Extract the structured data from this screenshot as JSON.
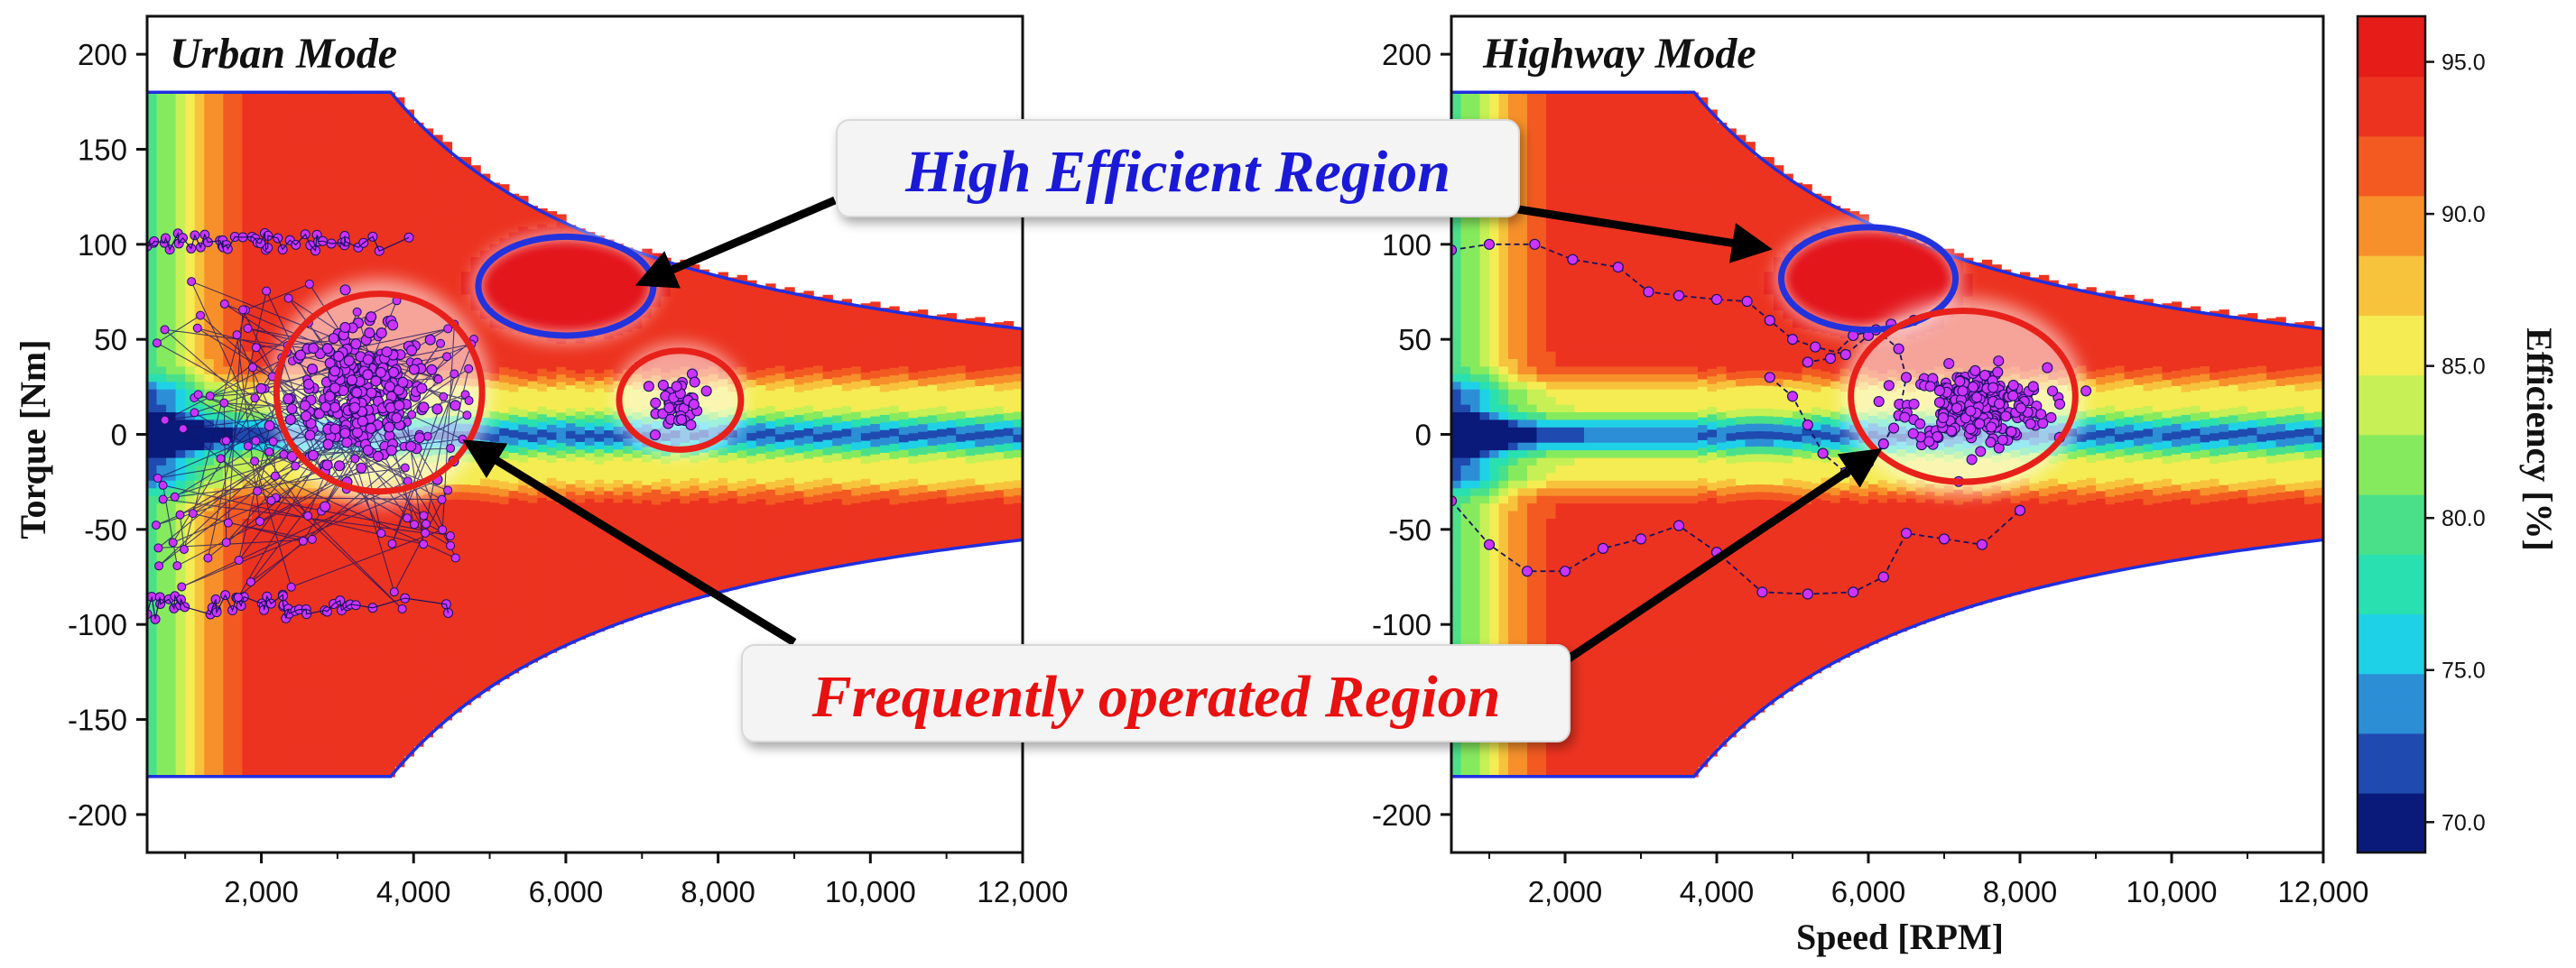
{
  "chart_data": [
    {
      "type": "heatmap",
      "title": "Urban Mode",
      "xlabel": "",
      "ylabel": "Torque [Nm]",
      "xlim": [
        500,
        12000
      ],
      "ylim": [
        -220,
        220
      ],
      "xticks": [
        2000,
        4000,
        6000,
        8000,
        10000,
        12000
      ],
      "xtick_labels": [
        "2,000",
        "4,000",
        "6,000",
        "8,000",
        "10,000",
        "12,000"
      ],
      "yticks": [
        200,
        150,
        100,
        50,
        0,
        -50,
        -100,
        -150,
        -200
      ],
      "torque_envelope": {
        "max_torque": 180,
        "base_speed": 3700,
        "max_speed": 12000,
        "torque_at_max_speed": 56
      },
      "operating_points": {
        "color": "#cc33ff",
        "clusters": [
          {
            "center": [
              3300,
              20
            ],
            "spread": [
              1000,
              38
            ],
            "count": 260
          },
          {
            "center": [
              7500,
              18
            ],
            "spread": [
              320,
              16
            ],
            "count": 45
          }
        ],
        "band_top": 102,
        "band_bottom": -90,
        "band_x_range": [
          500,
          4700
        ],
        "band_counts": 50
      },
      "high_efficiency_ellipse": {
        "center": [
          6000,
          78
        ],
        "radii": [
          1150,
          26
        ],
        "color": "#2233dd"
      },
      "frequent_region_ellipses": [
        {
          "center": [
            3550,
            22
          ],
          "radii": [
            1350,
            52
          ],
          "color": "#e8201a"
        },
        {
          "center": [
            7500,
            18
          ],
          "radii": [
            800,
            26
          ],
          "color": "#e8201a"
        }
      ]
    },
    {
      "type": "heatmap",
      "title": "Highway Mode",
      "xlabel": "Speed [RPM]",
      "ylabel": "",
      "xlim": [
        500,
        12000
      ],
      "ylim": [
        -220,
        220
      ],
      "xticks": [
        2000,
        4000,
        6000,
        8000,
        10000,
        12000
      ],
      "xtick_labels": [
        "2,000",
        "4,000",
        "6,000",
        "8,000",
        "10,000",
        "12,000"
      ],
      "yticks": [
        200,
        150,
        100,
        50,
        0,
        -50,
        -100,
        -150,
        -200
      ],
      "torque_envelope": {
        "max_torque": 180,
        "base_speed": 3700,
        "max_speed": 12000,
        "torque_at_max_speed": 56
      },
      "operating_points": {
        "color": "#cc33ff",
        "clusters": [
          {
            "center": [
              7450,
              15
            ],
            "spread": [
              1000,
              22
            ],
            "count": 260
          }
        ],
        "trace_upper": [
          [
            500,
            97
          ],
          [
            1000,
            100
          ],
          [
            1600,
            100
          ],
          [
            2100,
            92
          ],
          [
            2700,
            88
          ],
          [
            3100,
            75
          ],
          [
            3500,
            73
          ],
          [
            4000,
            71
          ],
          [
            4400,
            70
          ],
          [
            4700,
            60
          ],
          [
            5000,
            50
          ],
          [
            5300,
            46
          ],
          [
            5700,
            42
          ],
          [
            6000,
            52
          ],
          [
            6300,
            58
          ],
          [
            6600,
            60
          ]
        ],
        "trace_lower": [
          [
            500,
            -35
          ],
          [
            1000,
            -58
          ],
          [
            1500,
            -72
          ],
          [
            2000,
            -72
          ],
          [
            2500,
            -60
          ],
          [
            3000,
            -55
          ],
          [
            3500,
            -48
          ],
          [
            4000,
            -62
          ],
          [
            4600,
            -83
          ],
          [
            5200,
            -84
          ],
          [
            5800,
            -83
          ],
          [
            6200,
            -75
          ],
          [
            6500,
            -52
          ],
          [
            7000,
            -55
          ],
          [
            7500,
            -58
          ],
          [
            8000,
            -40
          ]
        ],
        "trace_loop": [
          [
            4700,
            30
          ],
          [
            5000,
            20
          ],
          [
            5200,
            5
          ],
          [
            5400,
            -10
          ],
          [
            5700,
            -20
          ],
          [
            6000,
            -15
          ],
          [
            6200,
            -5
          ],
          [
            6400,
            10
          ],
          [
            6500,
            30
          ],
          [
            6400,
            45
          ],
          [
            6100,
            55
          ],
          [
            5800,
            52
          ],
          [
            5500,
            40
          ],
          [
            5200,
            38
          ]
        ]
      },
      "high_efficiency_ellipse": {
        "center": [
          6000,
          82
        ],
        "radii": [
          1150,
          27
        ],
        "color": "#2233dd"
      },
      "frequent_region_ellipses": [
        {
          "center": [
            7250,
            20
          ],
          "radii": [
            1480,
            45
          ],
          "color": "#e8201a"
        }
      ]
    }
  ],
  "colorbar": {
    "label": "Efficiency [%]",
    "range": [
      69,
      96.5
    ],
    "ticks": [
      95.0,
      90.0,
      85.0,
      80.0,
      75.0,
      70.0
    ],
    "tick_labels": [
      "95.0",
      "90.0",
      "85.0",
      "80.0",
      "75.0",
      "70.0"
    ],
    "colors": [
      "#0a1a7a",
      "#1f4bb0",
      "#2c8fd6",
      "#1fd1e6",
      "#29e0b0",
      "#4ae08a",
      "#86ea5e",
      "#c6f055",
      "#f4ec52",
      "#f8c33c",
      "#f7902a",
      "#f35a22",
      "#ec3320",
      "#e51c18"
    ]
  },
  "callouts": {
    "high": {
      "label": "High Efficient Region",
      "color": "#1a1ad6"
    },
    "frequent": {
      "label": "Frequently operated Region",
      "color": "#e81010"
    }
  }
}
